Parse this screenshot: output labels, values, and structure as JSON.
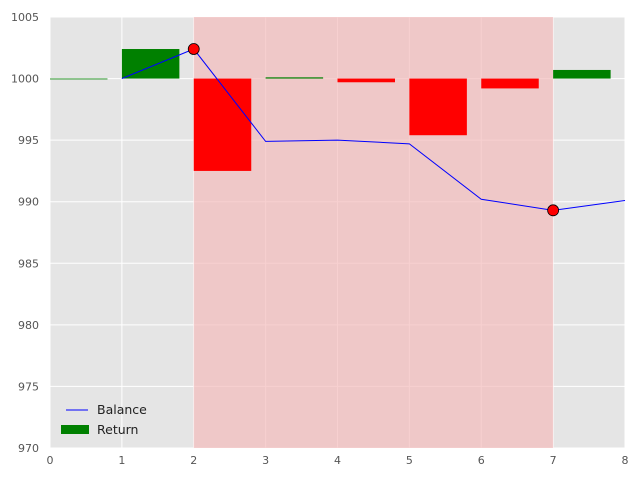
{
  "chart_data": {
    "type": "bar",
    "xlim": [
      0,
      8
    ],
    "ylim": [
      970,
      1005
    ],
    "x_ticks": [
      0,
      1,
      2,
      3,
      4,
      5,
      6,
      7,
      8
    ],
    "y_ticks": [
      970,
      975,
      980,
      985,
      990,
      995,
      1000,
      1005
    ],
    "grid": true,
    "legend_placement": "lower-left",
    "baseline": 1000,
    "highlight_region": {
      "x_start": 2,
      "x_end": 7,
      "color": "#f4bcbc"
    },
    "series": [
      {
        "name": "Balance",
        "kind": "line",
        "color": "#0000ff",
        "x": [
          1,
          2,
          3,
          4,
          5,
          6,
          7,
          8
        ],
        "y": [
          1000.0,
          1002.4,
          994.9,
          995.0,
          994.7,
          990.2,
          989.3,
          990.1
        ]
      },
      {
        "name": "Return",
        "kind": "bar",
        "positive_color": "#008000",
        "negative_color": "#ff0000",
        "x": [
          0,
          1,
          2,
          3,
          4,
          5,
          6,
          7
        ],
        "values": [
          0.0,
          2.4,
          -7.5,
          0.1,
          -0.3,
          -4.6,
          -0.8,
          0.7
        ]
      }
    ],
    "markers": [
      {
        "x": 2,
        "y": 1002.4,
        "color": "#ff0000"
      },
      {
        "x": 7,
        "y": 989.3,
        "color": "#ff0000"
      }
    ]
  }
}
